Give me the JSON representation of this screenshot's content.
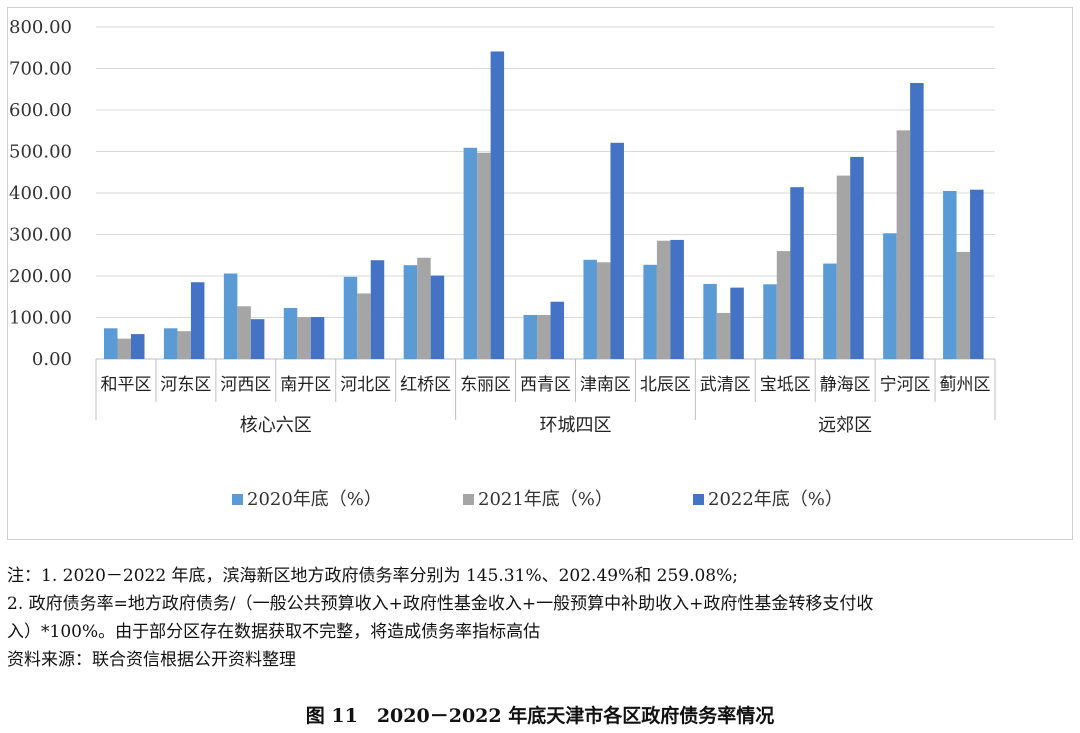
{
  "chart_data": {
    "type": "bar",
    "ylim": [
      0,
      800
    ],
    "yticks": [
      "0.00",
      "100.00",
      "200.00",
      "300.00",
      "400.00",
      "500.00",
      "600.00",
      "700.00",
      "800.00"
    ],
    "categories": [
      "和平区",
      "河东区",
      "河西区",
      "南开区",
      "河北区",
      "红桥区",
      "东丽区",
      "西青区",
      "津南区",
      "北辰区",
      "武清区",
      "宝坻区",
      "静海区",
      "宁河区",
      "蓟州区"
    ],
    "groups": [
      {
        "label": "核心六区",
        "start": 0,
        "end": 5
      },
      {
        "label": "环城四区",
        "start": 6,
        "end": 9
      },
      {
        "label": "远郊区",
        "start": 10,
        "end": 14
      }
    ],
    "series": [
      {
        "name": "2020年底（%）",
        "color": "#5b9bd5",
        "values": [
          74,
          74,
          206,
          123,
          198,
          226,
          509,
          106,
          239,
          227,
          181,
          180,
          230,
          303,
          405
        ]
      },
      {
        "name": "2021年底（%）",
        "color": "#a5a5a5",
        "values": [
          49,
          67,
          127,
          101,
          158,
          244,
          497,
          106,
          233,
          285,
          111,
          260,
          442,
          551,
          258
        ]
      },
      {
        "name": "2022年底（%）",
        "color": "#4472c4",
        "values": [
          60,
          185,
          96,
          101,
          238,
          201,
          741,
          138,
          521,
          287,
          172,
          414,
          487,
          665,
          408
        ]
      }
    ],
    "legend_position": "bottom",
    "grid": true
  },
  "notes": [
    "注：1. 2020－2022 年底，滨海新区地方政府债务率分别为 145.31%、202.49%和 259.08%;",
    "2. 政府债务率=地方政府债务/（一般公共预算收入+政府性基金收入+一般预算中补助收入+政府性基金转移支付收",
    "入）*100%。由于部分区存在数据获取不完整，将造成债务率指标高估",
    "资料来源：联合资信根据公开资料整理"
  ],
  "caption": "图 11　2020－2022 年底天津市各区政府债务率情况"
}
